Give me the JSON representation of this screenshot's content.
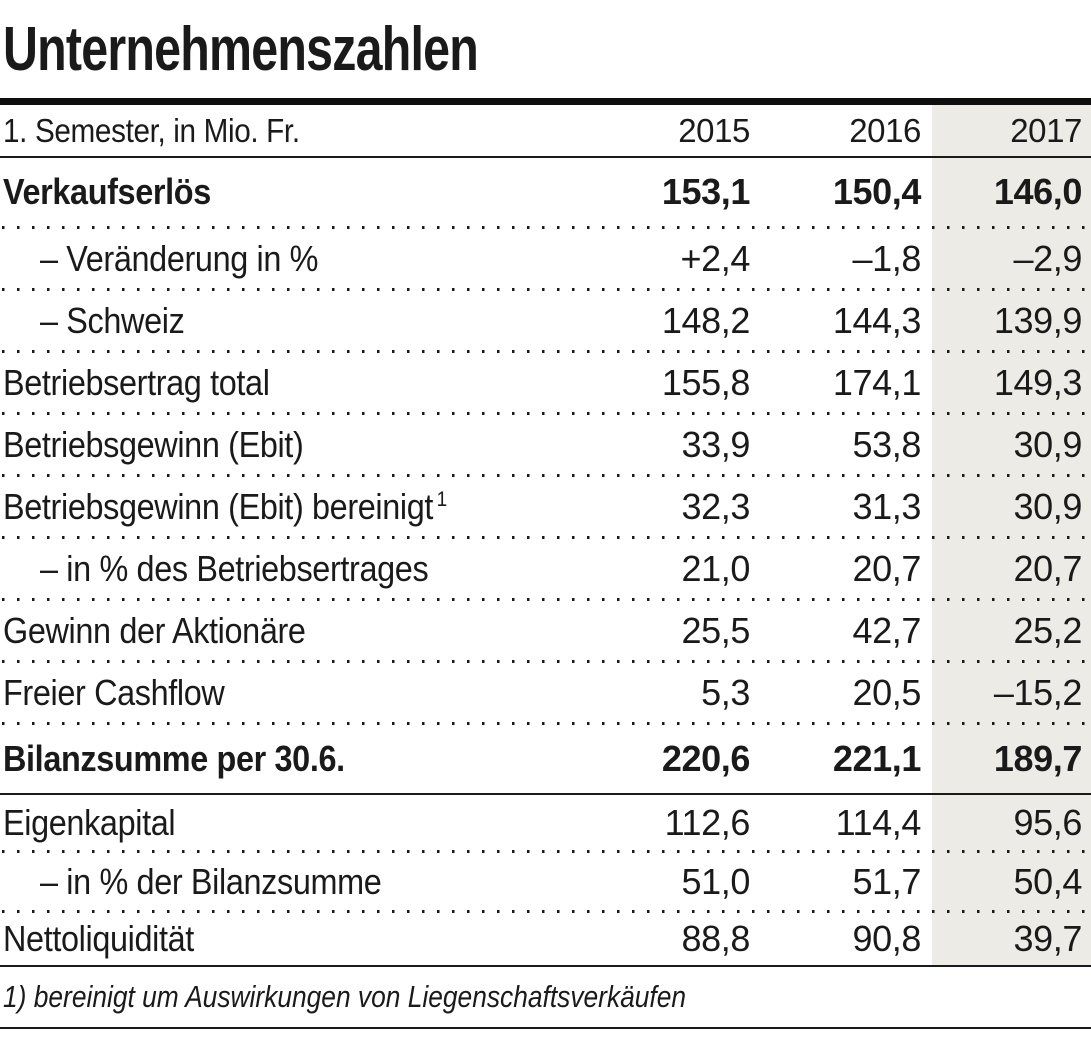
{
  "title": "Unternehmenszahlen",
  "table": {
    "unit_label": "1. Semester, in Mio. Fr.",
    "columns": [
      "2015",
      "2016",
      "2017"
    ],
    "highlighted_column": "2017",
    "rows": [
      {
        "label": "Verkaufserlös",
        "bold": true,
        "values": [
          "153,1",
          "150,4",
          "146,0"
        ]
      },
      {
        "label": "– Veränderung in %",
        "indent": true,
        "values": [
          "+2,4",
          "–1,8",
          "–2,9"
        ]
      },
      {
        "label": "– Schweiz",
        "indent": true,
        "values": [
          "148,2",
          "144,3",
          "139,9"
        ]
      },
      {
        "label": "Betriebsertrag total",
        "values": [
          "155,8",
          "174,1",
          "149,3"
        ]
      },
      {
        "label": "Betriebsgewinn (Ebit)",
        "values": [
          "33,9",
          "53,8",
          "30,9"
        ]
      },
      {
        "label": "Betriebsgewinn (Ebit) bereinigt",
        "sup": "1",
        "values": [
          "32,3",
          "31,3",
          "30,9"
        ]
      },
      {
        "label": "– in % des Betriebsertrages",
        "indent": true,
        "values": [
          "21,0",
          "20,7",
          "20,7"
        ]
      },
      {
        "label": "Gewinn der Aktionäre",
        "values": [
          "25,5",
          "42,7",
          "25,2"
        ]
      },
      {
        "label": "Freier Cashflow",
        "values": [
          "5,3",
          "20,5",
          "–15,2"
        ]
      },
      {
        "label": "Bilanzsumme per 30.6.",
        "bold": true,
        "values": [
          "220,6",
          "221,1",
          "189,7"
        ]
      },
      {
        "label": "Eigenkapital",
        "values": [
          "112,6",
          "114,4",
          "95,6"
        ]
      },
      {
        "label": "– in % der Bilanzsumme",
        "indent": true,
        "values": [
          "51,0",
          "51,7",
          "50,4"
        ]
      },
      {
        "label": "Nettoliquidität",
        "values": [
          "88,8",
          "90,8",
          "39,7"
        ]
      }
    ],
    "footnote": "1) bereinigt um Auswirkungen von Liegenschaftsverkäufen"
  },
  "colors": {
    "highlight_column_bg": "#ecebe5",
    "text": "#1a1a1a",
    "rule": "#0e0e0e"
  },
  "chart_data": {
    "type": "table",
    "title": "Unternehmenszahlen",
    "subtitle": "1. Semester, in Mio. Fr.",
    "columns": [
      "2015",
      "2016",
      "2017"
    ],
    "highlight_column": "2017",
    "rows": [
      {
        "label": "Verkaufserlös",
        "values": [
          153.1,
          150.4,
          146.0
        ],
        "emphasis": true
      },
      {
        "label": "Veränderung in %",
        "values": [
          2.4,
          -1.8,
          -2.9
        ]
      },
      {
        "label": "Schweiz",
        "values": [
          148.2,
          144.3,
          139.9
        ]
      },
      {
        "label": "Betriebsertrag total",
        "values": [
          155.8,
          174.1,
          149.3
        ]
      },
      {
        "label": "Betriebsgewinn (Ebit)",
        "values": [
          33.9,
          53.8,
          30.9
        ]
      },
      {
        "label": "Betriebsgewinn (Ebit) bereinigt",
        "values": [
          32.3,
          31.3,
          30.9
        ],
        "footnote_ref": "1"
      },
      {
        "label": "in % des Betriebsertrages",
        "values": [
          21.0,
          20.7,
          20.7
        ]
      },
      {
        "label": "Gewinn der Aktionäre",
        "values": [
          25.5,
          42.7,
          25.2
        ]
      },
      {
        "label": "Freier Cashflow",
        "values": [
          5.3,
          20.5,
          -15.2
        ]
      },
      {
        "label": "Bilanzsumme per 30.6.",
        "values": [
          220.6,
          221.1,
          189.7
        ],
        "emphasis": true
      },
      {
        "label": "Eigenkapital",
        "values": [
          112.6,
          114.4,
          95.6
        ]
      },
      {
        "label": "in % der Bilanzsumme",
        "values": [
          51.0,
          51.7,
          50.4
        ]
      },
      {
        "label": "Nettoliquidität",
        "values": [
          88.8,
          90.8,
          39.7
        ]
      }
    ],
    "footnote": "1) bereinigt um Auswirkungen von Liegenschaftsverkäufen"
  }
}
